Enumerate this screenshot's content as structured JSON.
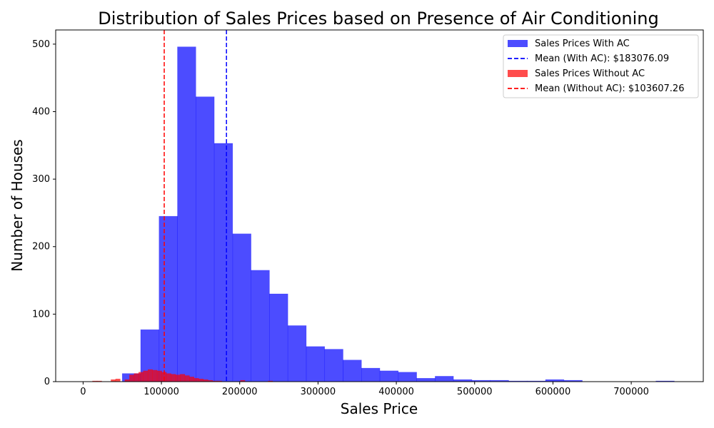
{
  "chart_data": {
    "type": "bar",
    "title": "Distribution of Sales Prices based on Presence of Air Conditioning",
    "xlabel": "Sales Price",
    "ylabel": "Number of Houses",
    "xlim": [
      -35000,
      792000
    ],
    "ylim": [
      0,
      521
    ],
    "x_ticks": [
      0,
      100000,
      200000,
      300000,
      400000,
      500000,
      600000,
      700000
    ],
    "y_ticks": [
      0,
      100,
      200,
      300,
      400,
      500
    ],
    "grid": false,
    "legend_position": "top-right",
    "series": [
      {
        "name": "Sales Prices With AC",
        "kind": "histogram",
        "color": "#0000ff",
        "opacity": 0.7,
        "bin_start": 50000,
        "bin_width": 23500,
        "counts": [
          12,
          77,
          245,
          496,
          422,
          353,
          219,
          165,
          130,
          83,
          52,
          48,
          32,
          20,
          16,
          14,
          5,
          8,
          3,
          2,
          2,
          1,
          1,
          3,
          2,
          0,
          0,
          0,
          0,
          1
        ]
      },
      {
        "name": "Sales Prices Without AC",
        "kind": "histogram",
        "color": "#ff0000",
        "opacity": 0.7,
        "bin_start": 12000,
        "bin_width": 5900,
        "counts": [
          1,
          1,
          0,
          0,
          3,
          4,
          0,
          3,
          10,
          12,
          14,
          16,
          18,
          17,
          16,
          14,
          12,
          11,
          10,
          11,
          9,
          7,
          5,
          4,
          3,
          2,
          1,
          1,
          0,
          0,
          0,
          0,
          2,
          0,
          0,
          0,
          0,
          0,
          1
        ]
      }
    ],
    "mean_lines": [
      {
        "name": "Mean (With AC): $183076.09",
        "value": 183076.09,
        "color": "#0000ff",
        "style": "dashed"
      },
      {
        "name": "Mean (Without AC): $103607.26",
        "value": 103607.26,
        "color": "#ff0000",
        "style": "dashed"
      }
    ],
    "legend_entries": [
      {
        "label": "Sales Prices With AC",
        "kind": "patch",
        "color": "#0000ff"
      },
      {
        "label": "Mean (With AC): $183076.09",
        "kind": "dashed-line",
        "color": "#0000ff"
      },
      {
        "label": "Sales Prices Without AC",
        "kind": "patch",
        "color": "#ff0000"
      },
      {
        "label": "Mean (Without AC): $103607.26",
        "kind": "dashed-line",
        "color": "#ff0000"
      }
    ]
  }
}
